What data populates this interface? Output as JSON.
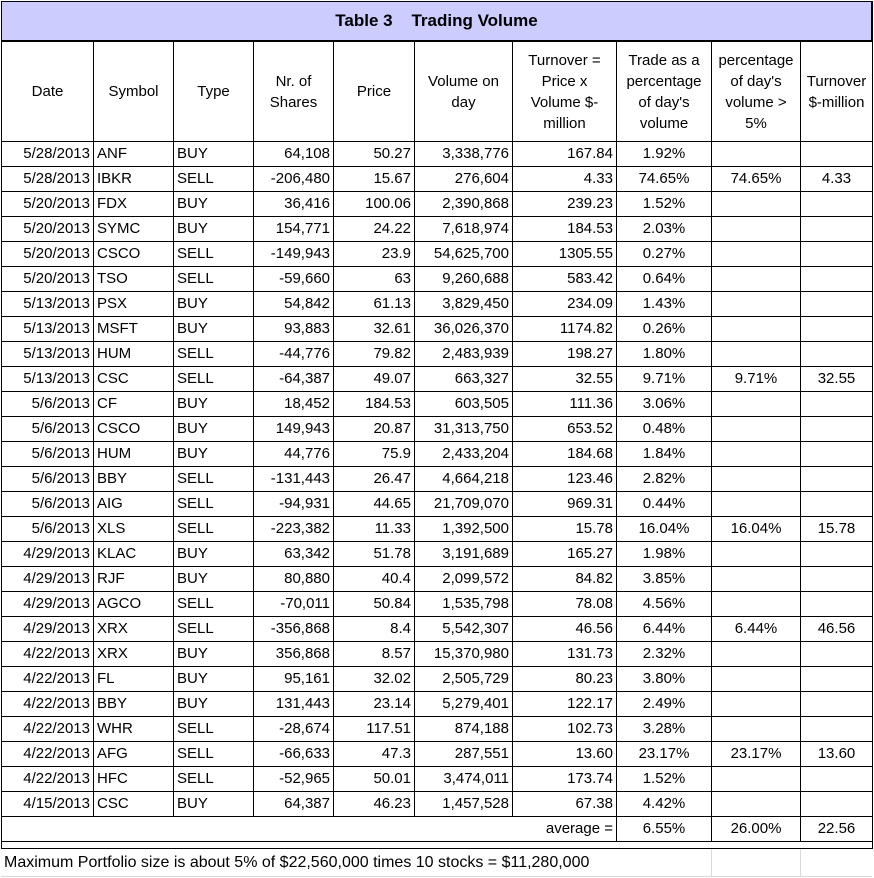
{
  "title": "Table 3    Trading Volume",
  "headers": [
    "Date",
    "Symbol",
    "Type",
    "Nr. of Shares",
    "Price",
    "Volume on day",
    "Turnover = Price x Volume $-million",
    "Trade as a percentage of day's volume",
    "percentage of day's volume > 5%",
    "Turnover $-million"
  ],
  "rows": [
    [
      "5/28/2013",
      "ANF",
      "BUY",
      "64,108",
      "50.27",
      "3,338,776",
      "167.84",
      "1.92%",
      "",
      ""
    ],
    [
      "5/28/2013",
      "IBKR",
      "SELL",
      "-206,480",
      "15.67",
      "276,604",
      "4.33",
      "74.65%",
      "74.65%",
      "4.33"
    ],
    [
      "5/20/2013",
      "FDX",
      "BUY",
      "36,416",
      "100.06",
      "2,390,868",
      "239.23",
      "1.52%",
      "",
      ""
    ],
    [
      "5/20/2013",
      "SYMC",
      "BUY",
      "154,771",
      "24.22",
      "7,618,974",
      "184.53",
      "2.03%",
      "",
      ""
    ],
    [
      "5/20/2013",
      "CSCO",
      "SELL",
      "-149,943",
      "23.9",
      "54,625,700",
      "1305.55",
      "0.27%",
      "",
      ""
    ],
    [
      "5/20/2013",
      "TSO",
      "SELL",
      "-59,660",
      "63",
      "9,260,688",
      "583.42",
      "0.64%",
      "",
      ""
    ],
    [
      "5/13/2013",
      "PSX",
      "BUY",
      "54,842",
      "61.13",
      "3,829,450",
      "234.09",
      "1.43%",
      "",
      ""
    ],
    [
      "5/13/2013",
      "MSFT",
      "BUY",
      "93,883",
      "32.61",
      "36,026,370",
      "1174.82",
      "0.26%",
      "",
      ""
    ],
    [
      "5/13/2013",
      "HUM",
      "SELL",
      "-44,776",
      "79.82",
      "2,483,939",
      "198.27",
      "1.80%",
      "",
      ""
    ],
    [
      "5/13/2013",
      "CSC",
      "SELL",
      "-64,387",
      "49.07",
      "663,327",
      "32.55",
      "9.71%",
      "9.71%",
      "32.55"
    ],
    [
      "5/6/2013",
      "CF",
      "BUY",
      "18,452",
      "184.53",
      "603,505",
      "111.36",
      "3.06%",
      "",
      ""
    ],
    [
      "5/6/2013",
      "CSCO",
      "BUY",
      "149,943",
      "20.87",
      "31,313,750",
      "653.52",
      "0.48%",
      "",
      ""
    ],
    [
      "5/6/2013",
      "HUM",
      "BUY",
      "44,776",
      "75.9",
      "2,433,204",
      "184.68",
      "1.84%",
      "",
      ""
    ],
    [
      "5/6/2013",
      "BBY",
      "SELL",
      "-131,443",
      "26.47",
      "4,664,218",
      "123.46",
      "2.82%",
      "",
      ""
    ],
    [
      "5/6/2013",
      "AIG",
      "SELL",
      "-94,931",
      "44.65",
      "21,709,070",
      "969.31",
      "0.44%",
      "",
      ""
    ],
    [
      "5/6/2013",
      "XLS",
      "SELL",
      "-223,382",
      "11.33",
      "1,392,500",
      "15.78",
      "16.04%",
      "16.04%",
      "15.78"
    ],
    [
      "4/29/2013",
      "KLAC",
      "BUY",
      "63,342",
      "51.78",
      "3,191,689",
      "165.27",
      "1.98%",
      "",
      ""
    ],
    [
      "4/29/2013",
      "RJF",
      "BUY",
      "80,880",
      "40.4",
      "2,099,572",
      "84.82",
      "3.85%",
      "",
      ""
    ],
    [
      "4/29/2013",
      "AGCO",
      "SELL",
      "-70,011",
      "50.84",
      "1,535,798",
      "78.08",
      "4.56%",
      "",
      ""
    ],
    [
      "4/29/2013",
      "XRX",
      "SELL",
      "-356,868",
      "8.4",
      "5,542,307",
      "46.56",
      "6.44%",
      "6.44%",
      "46.56"
    ],
    [
      "4/22/2013",
      "XRX",
      "BUY",
      "356,868",
      "8.57",
      "15,370,980",
      "131.73",
      "2.32%",
      "",
      ""
    ],
    [
      "4/22/2013",
      "FL",
      "BUY",
      "95,161",
      "32.02",
      "2,505,729",
      "80.23",
      "3.80%",
      "",
      ""
    ],
    [
      "4/22/2013",
      "BBY",
      "BUY",
      "131,443",
      "23.14",
      "5,279,401",
      "122.17",
      "2.49%",
      "",
      ""
    ],
    [
      "4/22/2013",
      "WHR",
      "SELL",
      "-28,674",
      "117.51",
      "874,188",
      "102.73",
      "3.28%",
      "",
      ""
    ],
    [
      "4/22/2013",
      "AFG",
      "SELL",
      "-66,633",
      "47.3",
      "287,551",
      "13.60",
      "23.17%",
      "23.17%",
      "13.60"
    ],
    [
      "4/22/2013",
      "HFC",
      "SELL",
      "-52,965",
      "50.01",
      "3,474,011",
      "173.74",
      "1.52%",
      "",
      ""
    ],
    [
      "4/15/2013",
      "CSC",
      "BUY",
      "64,387",
      "46.23",
      "1,457,528",
      "67.38",
      "4.42%",
      "",
      ""
    ]
  ],
  "average": {
    "label": "average =",
    "trade_pct": "6.55%",
    "pct_over_5": "26.00%",
    "turnover": "22.56"
  },
  "footer": "Maximum Portfolio size is about 5% of $22,560,000 times 10 stocks = $11,280,000"
}
